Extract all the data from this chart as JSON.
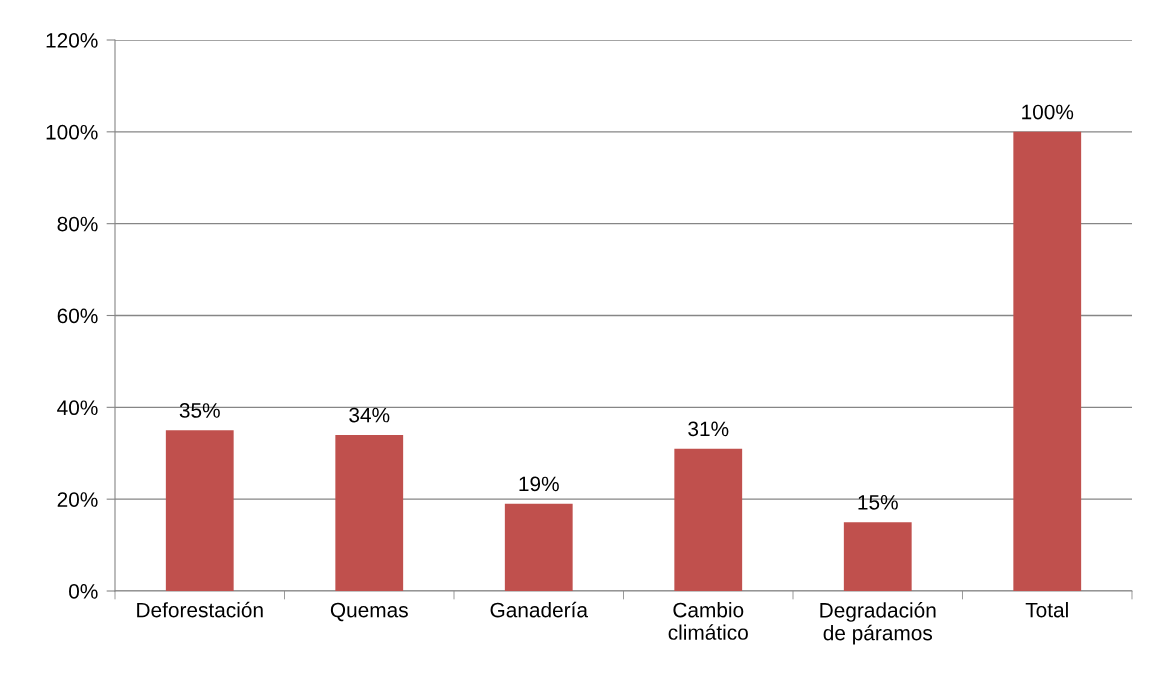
{
  "chart_data": {
    "type": "bar",
    "categories": [
      "Deforestación",
      "Quemas",
      "Ganadería",
      "Cambio climático",
      "Degradación de páramos",
      "Total"
    ],
    "values": [
      35,
      34,
      19,
      31,
      15,
      100
    ],
    "value_labels": [
      "35%",
      "34%",
      "19%",
      "31%",
      "15%",
      "100%"
    ],
    "color": "#c0504d",
    "ylim": [
      0,
      120
    ],
    "yticks": [
      {
        "value": 0,
        "label": "0%"
      },
      {
        "value": 20,
        "label": "20%"
      },
      {
        "value": 40,
        "label": "40%"
      },
      {
        "value": 60,
        "label": "60%"
      },
      {
        "value": 80,
        "label": "80%"
      },
      {
        "value": 100,
        "label": "100%"
      },
      {
        "value": 120,
        "label": "120%"
      }
    ],
    "grid": "y",
    "legend": false
  }
}
